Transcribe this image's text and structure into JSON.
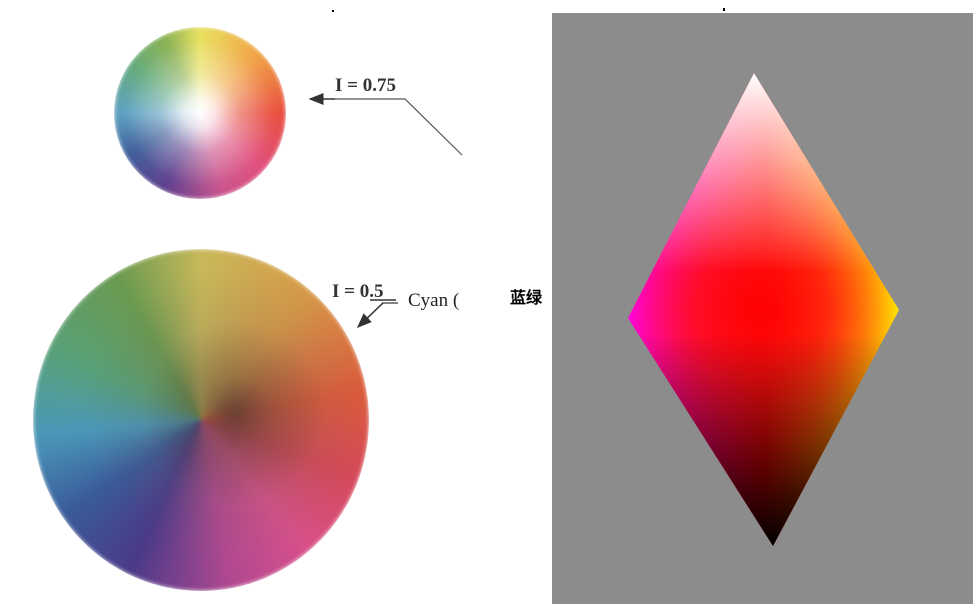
{
  "labels": {
    "i_small": "I = 0.75",
    "i_large": "I = 0.5",
    "cyan": "Cyan (",
    "chinese": "蓝绿"
  },
  "colors": {
    "panel_bg": "#8c8c8c",
    "top_vertex": "#ffffff",
    "left_vertex": "#ff00ff",
    "center": "#ff0000",
    "right_vertex": "#ffff00",
    "bottom_vertex": "#000000"
  }
}
